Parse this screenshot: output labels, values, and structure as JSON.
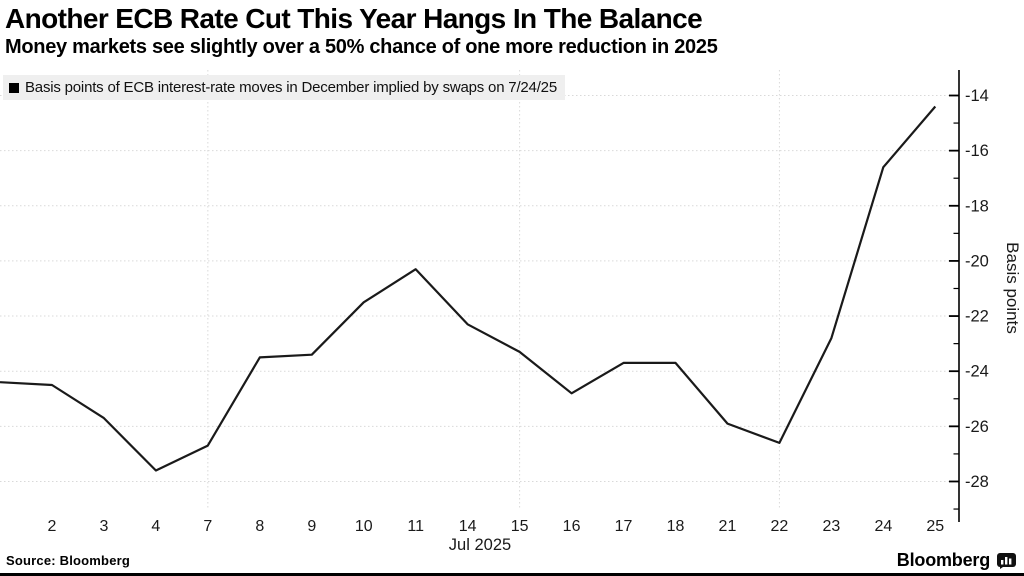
{
  "header": {
    "title": "Another ECB Rate Cut This Year Hangs In The Balance",
    "subtitle": "Money markets see slightly over a 50% chance of one more reduction in 2025"
  },
  "legend": {
    "label": "Basis points of ECB interest-rate moves in December implied by swaps on 7/24/25"
  },
  "chart_data": {
    "type": "line",
    "x": [
      "1",
      "2",
      "3",
      "4",
      "7",
      "8",
      "9",
      "10",
      "11",
      "14",
      "15",
      "16",
      "17",
      "18",
      "21",
      "22",
      "23",
      "24",
      "25"
    ],
    "x_tick_labels": [
      "2",
      "3",
      "4",
      "7",
      "8",
      "9",
      "10",
      "11",
      "14",
      "15",
      "16",
      "17",
      "18",
      "21",
      "22",
      "23",
      "24",
      "25"
    ],
    "series": [
      {
        "name": "Basis points of ECB interest-rate moves in December implied by swaps on 7/24/25",
        "values": [
          -24.4,
          -24.5,
          -25.7,
          -27.6,
          -26.7,
          -23.5,
          -23.4,
          -21.5,
          -20.3,
          -22.3,
          -23.3,
          -24.8,
          -23.7,
          -23.7,
          -25.9,
          -26.6,
          -22.8,
          -16.6,
          -14.4
        ]
      }
    ],
    "xlabel": "Jul 2025",
    "ylabel": "Basis points",
    "y_major_ticks": [
      -14,
      -16,
      -18,
      -20,
      -22,
      -24,
      -26,
      -28
    ],
    "y_minor_ticks": [
      -15,
      -17,
      -19,
      -21,
      -23,
      -25,
      -27,
      -29
    ],
    "ylim": [
      -29.5,
      -13.1
    ],
    "grid": "dotted",
    "vertical_gridlines_at": [
      "7",
      "15",
      "22"
    ],
    "legend_position": "top-left",
    "y_axis_side": "right"
  },
  "colors": {
    "line": "#1a1a1a",
    "grid": "#d9d9d9",
    "axis": "#000000",
    "tick_text": "#1a1a1a",
    "legend_bg": "#efefef"
  },
  "footer": {
    "source": "Source: Bloomberg",
    "brand": "Bloomberg"
  }
}
